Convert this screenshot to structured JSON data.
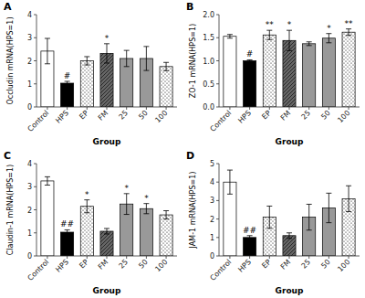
{
  "chart_data": [
    {
      "type": "bar",
      "title": "A",
      "ylabel": "Occludin mRNA(HPS=1)",
      "xlabel": "Group",
      "categories": [
        "Control",
        "HPS",
        "EP",
        "FM",
        "25",
        "50",
        "100"
      ],
      "values": [
        2.42,
        1.03,
        2.0,
        2.32,
        2.1,
        2.1,
        1.75
      ],
      "errors": [
        0.55,
        0.08,
        0.18,
        0.42,
        0.35,
        0.52,
        0.18
      ],
      "annotations": [
        null,
        "#",
        null,
        "*",
        null,
        null,
        null
      ],
      "colors": [
        "white",
        "black",
        "white",
        "#666666",
        "#999999",
        "#999999",
        "white"
      ],
      "ylim": [
        0,
        4
      ],
      "yticks": [
        0,
        1,
        2,
        3,
        4
      ]
    },
    {
      "type": "bar",
      "title": "B",
      "ylabel": "ZO-1 mRNA(HPS=1)",
      "xlabel": "Group",
      "categories": [
        "Control",
        "HPS",
        "EP",
        "FM",
        "25",
        "50",
        "100"
      ],
      "values": [
        1.53,
        1.0,
        1.56,
        1.44,
        1.37,
        1.49,
        1.62
      ],
      "errors": [
        0.04,
        0.02,
        0.1,
        0.22,
        0.04,
        0.1,
        0.07
      ],
      "annotations": [
        null,
        "#",
        "**",
        "*",
        null,
        "*",
        "**"
      ],
      "colors": [
        "white",
        "black",
        "white",
        "#666666",
        "#999999",
        "#999999",
        "white"
      ],
      "ylim": [
        0,
        2.0
      ],
      "yticks": [
        {
          "value": 0.0,
          "label": "0.0"
        },
        0.5,
        {
          "value": 1.0,
          "label": "1.0"
        },
        1.5,
        {
          "value": 2.0,
          "label": "2.0"
        }
      ]
    },
    {
      "type": "bar",
      "title": "C",
      "ylabel": "Claudin-1 mRNA(HPS=1)",
      "xlabel": "Group",
      "categories": [
        "Control",
        "HPS",
        "EP",
        "FM",
        "25",
        "50",
        "100"
      ],
      "values": [
        3.25,
        1.03,
        2.15,
        1.07,
        2.25,
        2.05,
        1.78
      ],
      "errors": [
        0.18,
        0.1,
        0.28,
        0.12,
        0.45,
        0.22,
        0.18
      ],
      "annotations": [
        null,
        "##",
        "*",
        null,
        "*",
        "*",
        null
      ],
      "colors": [
        "white",
        "black",
        "white",
        "#666666",
        "#999999",
        "#999999",
        "white"
      ],
      "ylim": [
        0,
        4
      ],
      "yticks": [
        0,
        1,
        2,
        3,
        4
      ]
    },
    {
      "type": "bar",
      "title": "D",
      "ylabel": "JAM-1 mRNA(HPS=1)",
      "xlabel": "Group",
      "categories": [
        "Control",
        "HPS",
        "EP",
        "FM",
        "25",
        "50",
        "100"
      ],
      "values": [
        4.0,
        1.0,
        2.1,
        1.1,
        2.1,
        2.6,
        3.1
      ],
      "errors": [
        0.65,
        0.1,
        0.6,
        0.15,
        0.7,
        0.8,
        0.7
      ],
      "annotations": [
        null,
        "##",
        null,
        null,
        null,
        null,
        null
      ],
      "colors": [
        "white",
        "black",
        "white",
        "#666666",
        "#999999",
        "#999999",
        "white"
      ],
      "ylim": [
        0,
        5
      ],
      "yticks": [
        0,
        1,
        2,
        3,
        4,
        5
      ]
    }
  ]
}
